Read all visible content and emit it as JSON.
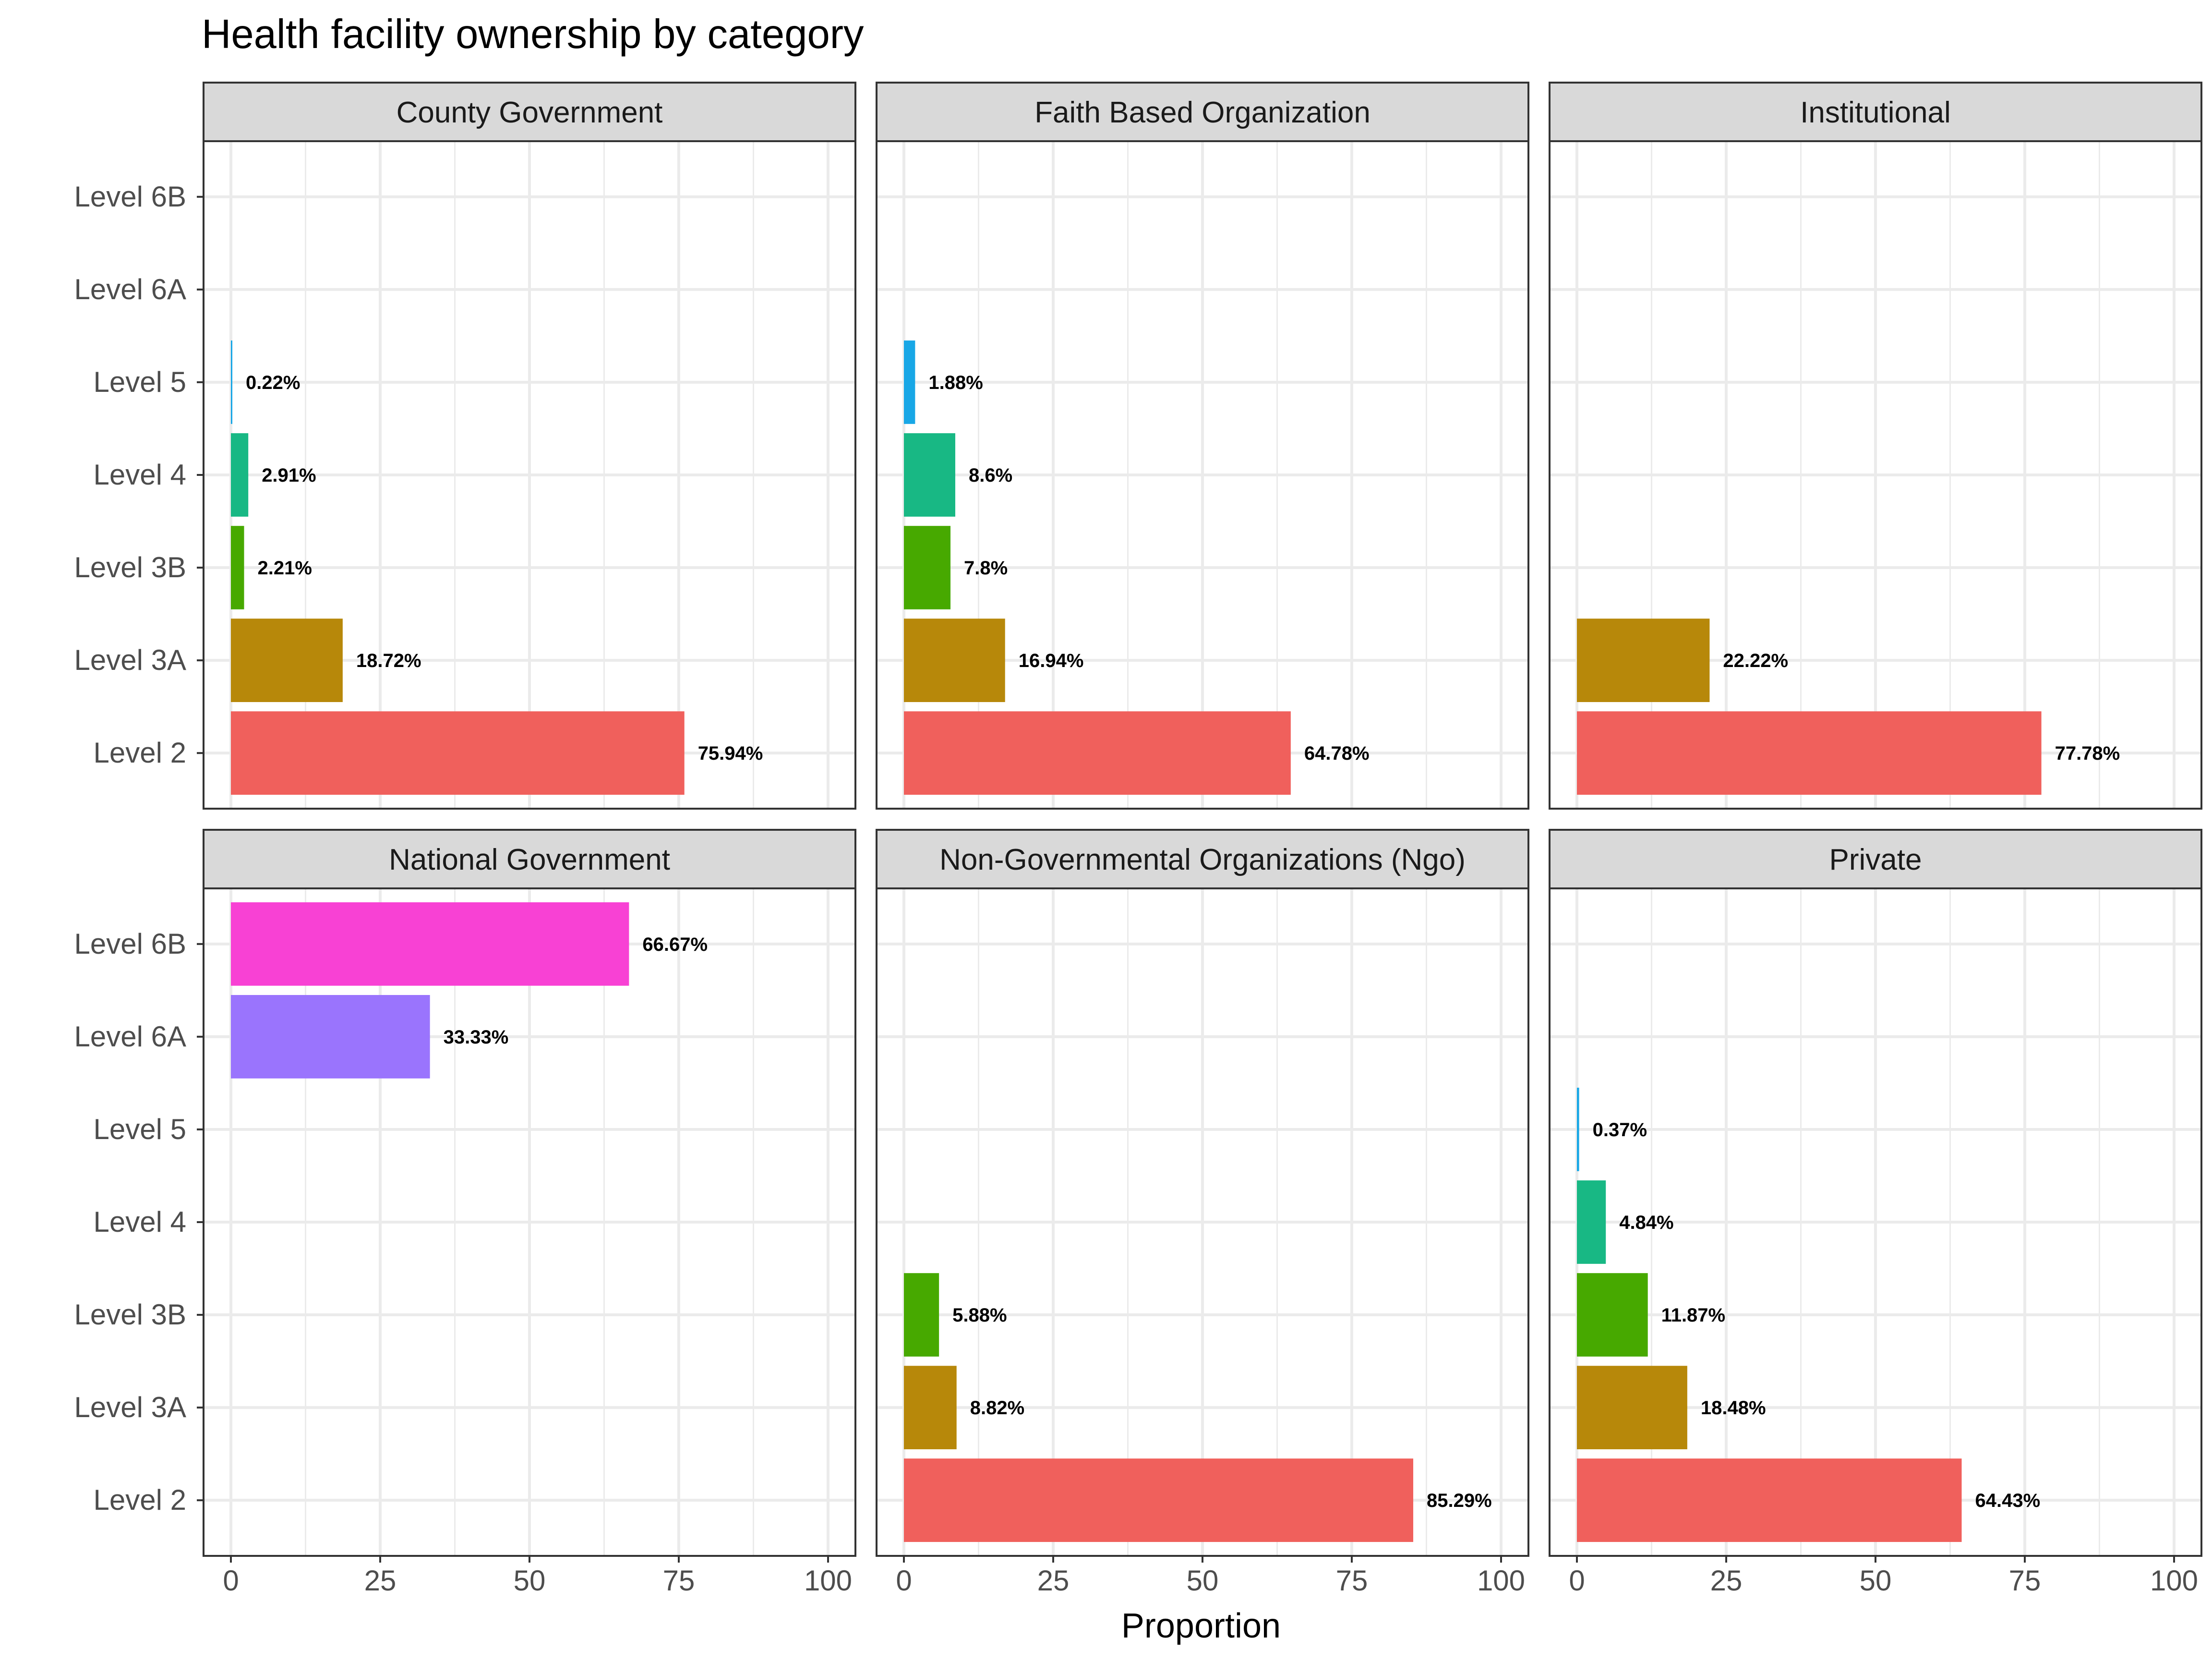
{
  "chart_data": {
    "type": "bar",
    "orientation": "horizontal",
    "facet_layout": "2x3",
    "title": "Health facility ownership by category",
    "xlabel": "Proportion",
    "ylabel": "",
    "xlim": [
      0,
      100
    ],
    "x_ticks": [
      0,
      25,
      50,
      75,
      100
    ],
    "grid": true,
    "legend": "none",
    "categories": [
      "Level 6B",
      "Level 6A",
      "Level 5",
      "Level 4",
      "Level 3B",
      "Level 3A",
      "Level 2"
    ],
    "colors": {
      "Level 2": "#F0605C",
      "Level 3A": "#B7880A",
      "Level 3B": "#47A900",
      "Level 4": "#18B884",
      "Level 5": "#18A7E6",
      "Level 6A": "#9A74FD",
      "Level 6B": "#F841D4"
    },
    "panels": [
      {
        "name": "County Government",
        "bars": [
          {
            "category": "Level 5",
            "value": 0.22,
            "label": "0.22%"
          },
          {
            "category": "Level 4",
            "value": 2.91,
            "label": "2.91%"
          },
          {
            "category": "Level 3B",
            "value": 2.21,
            "label": "2.21%"
          },
          {
            "category": "Level 3A",
            "value": 18.72,
            "label": "18.72%"
          },
          {
            "category": "Level 2",
            "value": 75.94,
            "label": "75.94%"
          }
        ]
      },
      {
        "name": "Faith Based Organization",
        "bars": [
          {
            "category": "Level 5",
            "value": 1.88,
            "label": "1.88%"
          },
          {
            "category": "Level 4",
            "value": 8.6,
            "label": "8.6%"
          },
          {
            "category": "Level 3B",
            "value": 7.8,
            "label": "7.8%"
          },
          {
            "category": "Level 3A",
            "value": 16.94,
            "label": "16.94%"
          },
          {
            "category": "Level 2",
            "value": 64.78,
            "label": "64.78%"
          }
        ]
      },
      {
        "name": "Institutional",
        "bars": [
          {
            "category": "Level 3A",
            "value": 22.22,
            "label": "22.22%"
          },
          {
            "category": "Level 2",
            "value": 77.78,
            "label": "77.78%"
          }
        ]
      },
      {
        "name": "National Government",
        "bars": [
          {
            "category": "Level 6B",
            "value": 66.67,
            "label": "66.67%"
          },
          {
            "category": "Level 6A",
            "value": 33.33,
            "label": "33.33%"
          }
        ]
      },
      {
        "name": "Non-Governmental Organizations (Ngo)",
        "bars": [
          {
            "category": "Level 3B",
            "value": 5.88,
            "label": "5.88%"
          },
          {
            "category": "Level 3A",
            "value": 8.82,
            "label": "8.82%"
          },
          {
            "category": "Level 2",
            "value": 85.29,
            "label": "85.29%"
          }
        ]
      },
      {
        "name": "Private",
        "bars": [
          {
            "category": "Level 5",
            "value": 0.37,
            "label": "0.37%"
          },
          {
            "category": "Level 4",
            "value": 4.84,
            "label": "4.84%"
          },
          {
            "category": "Level 3B",
            "value": 11.87,
            "label": "11.87%"
          },
          {
            "category": "Level 3A",
            "value": 18.48,
            "label": "18.48%"
          },
          {
            "category": "Level 2",
            "value": 64.43,
            "label": "64.43%"
          }
        ]
      }
    ]
  }
}
